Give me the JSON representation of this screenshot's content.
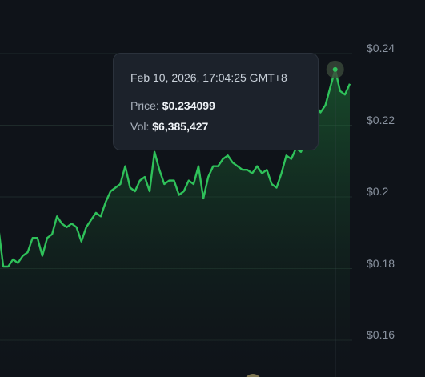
{
  "tooltip": {
    "time": "Feb 10, 2026, 17:04:25 GMT+8",
    "price_label": "Price:",
    "price_value": "$0.234099",
    "vol_label": "Vol:",
    "vol_value": "$6,385,427"
  },
  "colors": {
    "background": "#0f1319",
    "line": "#2fc15a",
    "grid": "#1e2a2a",
    "tooltip_bg": "#1c222b",
    "crosshair": "#3f4852"
  },
  "chart_data": {
    "type": "area",
    "ylim": [
      0.15,
      0.24
    ],
    "yticks": [
      "$0.24",
      "$0.22",
      "$0.2",
      "$0.18",
      "$0.16"
    ],
    "ytick_values": [
      0.24,
      0.22,
      0.2,
      0.18,
      0.16
    ],
    "grid": true,
    "hover_index": 69,
    "series": [
      {
        "values": [
          0.19,
          0.179,
          0.179,
          0.181,
          0.18,
          0.182,
          0.183,
          0.187,
          0.187,
          0.182,
          0.187,
          0.188,
          0.193,
          0.191,
          0.19,
          0.191,
          0.19,
          0.186,
          0.19,
          0.192,
          0.194,
          0.193,
          0.197,
          0.2,
          0.201,
          0.202,
          0.207,
          0.201,
          0.2,
          0.203,
          0.204,
          0.2,
          0.211,
          0.206,
          0.202,
          0.203,
          0.203,
          0.199,
          0.2,
          0.203,
          0.202,
          0.207,
          0.198,
          0.204,
          0.207,
          0.207,
          0.209,
          0.21,
          0.208,
          0.207,
          0.206,
          0.206,
          0.205,
          0.207,
          0.205,
          0.206,
          0.202,
          0.201,
          0.205,
          0.21,
          0.209,
          0.212,
          0.211,
          0.214,
          0.215,
          0.224,
          0.222,
          0.224,
          0.229,
          0.234,
          0.228,
          0.227,
          0.23
        ]
      }
    ]
  }
}
